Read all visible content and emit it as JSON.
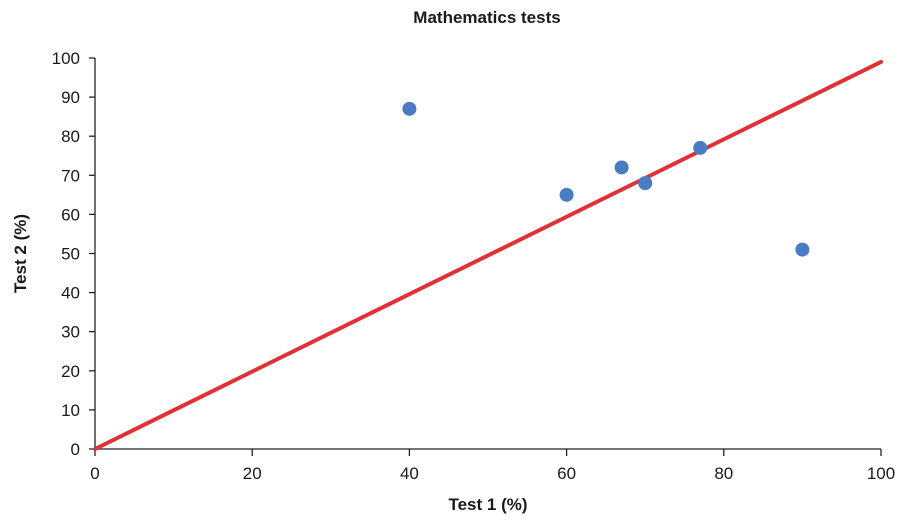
{
  "chart_data": {
    "type": "scatter",
    "title": "Mathematics tests",
    "xlabel": "Test 1 (%)",
    "ylabel": "Test 2 (%)",
    "xlim": [
      0,
      100
    ],
    "ylim": [
      0,
      100
    ],
    "x_ticks": [
      "0",
      "20",
      "40",
      "60",
      "80",
      "100"
    ],
    "y_ticks": [
      "0",
      "10",
      "20",
      "30",
      "40",
      "50",
      "60",
      "70",
      "80",
      "90",
      "100"
    ],
    "grid": false,
    "legend": "none",
    "series": [
      {
        "x": [
          40,
          60,
          67,
          70,
          77,
          90
        ],
        "y": [
          87,
          65,
          72,
          68,
          77,
          51
        ],
        "color": "#4a7cc4",
        "marker": "circle"
      }
    ],
    "reference_line": {
      "x": [
        0,
        100
      ],
      "y": [
        0,
        99
      ],
      "color": "#e03136"
    }
  }
}
